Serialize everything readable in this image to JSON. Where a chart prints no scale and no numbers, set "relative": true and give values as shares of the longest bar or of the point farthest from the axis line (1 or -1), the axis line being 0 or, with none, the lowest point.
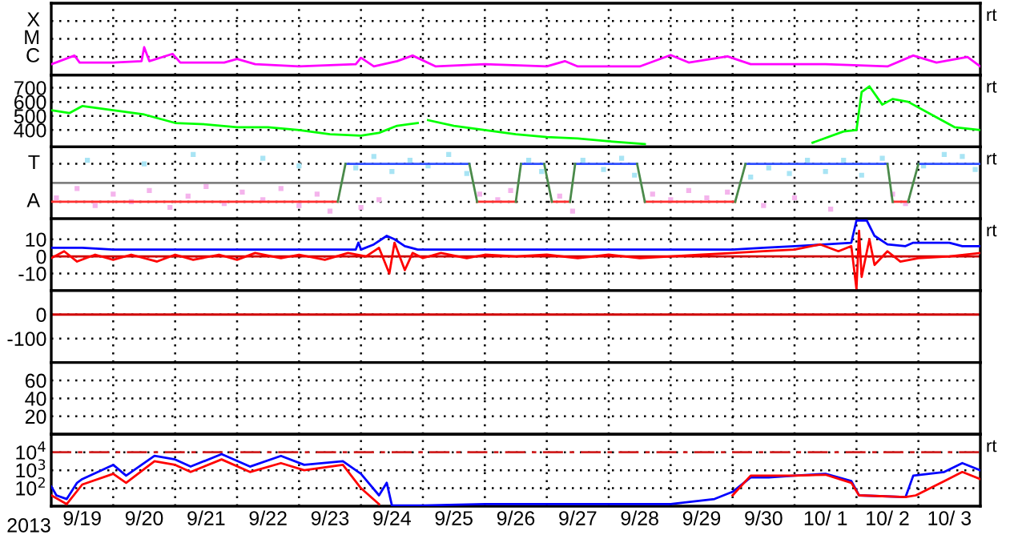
{
  "chart_data": [
    {
      "type": "line",
      "xlim": [
        "2013-09-19T00:00",
        "2013-10-04T00:00"
      ],
      "relative": true,
      "tick_labels": "y",
      "grid": "x",
      "annotations": [
        "rt"
      ],
      "xticks": [
        {
          "value": "2013-09-20T00:00",
          "label": null
        },
        {
          "value": "2013-09-21T00:00",
          "label": null
        },
        {
          "value": "2013-09-22T00:00",
          "label": null
        },
        {
          "value": "2013-09-23T00:00",
          "label": null
        },
        {
          "value": "2013-09-24T00:00",
          "label": null
        },
        {
          "value": "2013-09-25T00:00",
          "label": null
        },
        {
          "value": "2013-09-26T00:00",
          "label": null
        },
        {
          "value": "2013-09-27T00:00",
          "label": null
        },
        {
          "value": "2013-09-28T00:00",
          "label": null
        },
        {
          "value": "2013-09-29T00:00",
          "label": null
        },
        {
          "value": "2013-09-30T00:00",
          "label": null
        },
        {
          "value": "2013-10-01T00:00",
          "label": null
        },
        {
          "value": "2013-10-02T00:00",
          "label": null
        },
        {
          "value": "2013-10-03T00:00",
          "label": null
        }
      ],
      "ref_lines": [
        {
          "axis": "y",
          "value": 0.65,
          "label": "C",
          "color": "#000000",
          "line_style": "dotted"
        },
        {
          "axis": "y",
          "value": 1.3,
          "label": "M",
          "color": "#000000",
          "line_style": "dotted"
        },
        {
          "axis": "y",
          "value": 1.94,
          "label": "X",
          "color": "#000000",
          "line_style": "dotted"
        }
      ],
      "series": [
        {
          "color": "#ff00ff",
          "x": [
            "2013-09-19T00:00",
            "2013-09-19T09:00",
            "2013-09-19T11:00",
            "2013-09-20T00:00",
            "2013-09-20T11:00",
            "2013-09-20T12:00",
            "2013-09-20T14:00",
            "2013-09-20T23:00",
            "2013-09-21T02:00",
            "2013-09-21T19:00",
            "2013-09-22T00:00",
            "2013-09-22T07:00",
            "2013-09-23T00:00",
            "2013-09-23T22:00",
            "2013-09-24T00:00",
            "2013-09-24T05:00",
            "2013-09-24T14:00",
            "2013-09-24T20:00",
            "2013-09-25T05:00",
            "2013-09-26T00:00",
            "2013-09-27T00:00",
            "2013-09-27T07:00",
            "2013-09-27T12:00",
            "2013-09-28T12:00",
            "2013-09-29T00:00",
            "2013-09-29T07:00",
            "2013-09-29T22:00",
            "2013-09-30T07:00",
            "2013-10-01T12:00",
            "2013-10-02T12:00",
            "2013-10-02T22:00",
            "2013-10-03T07:00",
            "2013-10-03T19:00",
            "2013-10-04T00:00"
          ],
          "values": [
            0.39,
            0.7,
            0.45,
            0.45,
            0.5,
            1,
            0.5,
            0.76,
            0.45,
            0.45,
            0.58,
            0.39,
            0.31,
            0.39,
            0.62,
            0.31,
            0.5,
            0.7,
            0.31,
            0.39,
            0.31,
            0.5,
            0.31,
            0.31,
            0.72,
            0.45,
            0.67,
            0.39,
            0.39,
            0.31,
            0.7,
            0.45,
            0.65,
            0.31
          ]
        }
      ]
    },
    {
      "type": "line",
      "xlim": [
        "2013-09-19T00:00",
        "2013-10-04T00:00"
      ],
      "ylim": [
        280,
        790
      ],
      "tick_labels": "y",
      "grid": true,
      "annotations": [
        "rt"
      ],
      "xticks": [
        {
          "value": "2013-09-20T00:00",
          "label": null
        },
        {
          "value": "2013-09-21T00:00",
          "label": null
        },
        {
          "value": "2013-09-22T00:00",
          "label": null
        },
        {
          "value": "2013-09-23T00:00",
          "label": null
        },
        {
          "value": "2013-09-24T00:00",
          "label": null
        },
        {
          "value": "2013-09-25T00:00",
          "label": null
        },
        {
          "value": "2013-09-26T00:00",
          "label": null
        },
        {
          "value": "2013-09-27T00:00",
          "label": null
        },
        {
          "value": "2013-09-28T00:00",
          "label": null
        },
        {
          "value": "2013-09-29T00:00",
          "label": null
        },
        {
          "value": "2013-09-30T00:00",
          "label": null
        },
        {
          "value": "2013-10-01T00:00",
          "label": null
        },
        {
          "value": "2013-10-02T00:00",
          "label": null
        },
        {
          "value": "2013-10-03T00:00",
          "label": null
        }
      ],
      "yticks": [
        400,
        500,
        600,
        700
      ],
      "series": [
        {
          "color": "#00ff00",
          "x": [
            "2013-09-19T00:00",
            "2013-09-19T07:00",
            "2013-09-19T12:00",
            "2013-09-20T00:00",
            "2013-09-20T12:00",
            "2013-09-21T00:00",
            "2013-09-21T12:00",
            "2013-09-22T00:00",
            "2013-09-22T12:00",
            "2013-09-23T00:00",
            "2013-09-23T12:00",
            "2013-09-24T00:00",
            "2013-09-24T07:00",
            "2013-09-24T14:00",
            "2013-09-24T22:00",
            "2013-09-24T23:00",
            "2013-09-25T02:00",
            "2013-09-25T12:00",
            "2013-09-26T00:00",
            "2013-09-26T12:00",
            "2013-09-27T00:00",
            "2013-09-27T12:00",
            "2013-09-28T00:00",
            "2013-09-28T14:00",
            "2013-09-28T17:00",
            "2013-10-01T07:00",
            "2013-10-01T19:00",
            "2013-10-02T00:00",
            "2013-10-02T02:00",
            "2013-10-02T05:00",
            "2013-10-02T10:00",
            "2013-10-02T14:00",
            "2013-10-02T20:00",
            "2013-10-03T07:00",
            "2013-10-03T14:00",
            "2013-10-04T00:00"
          ],
          "values": [
            540,
            520,
            570,
            540,
            510,
            450,
            440,
            420,
            420,
            400,
            370,
            360,
            380,
            430,
            450,
            null,
            470,
            430,
            400,
            370,
            350,
            340,
            320,
            300,
            null,
            310,
            390,
            400,
            670,
            710,
            580,
            620,
            600,
            490,
            420,
            400
          ]
        }
      ]
    },
    {
      "type": "line",
      "xlim": [
        "2013-09-19T00:00",
        "2013-10-04T00:00"
      ],
      "relative": true,
      "tick_labels": "y",
      "grid": "x",
      "annotations": [
        "rt"
      ],
      "xticks": [
        {
          "value": "2013-09-20T00:00",
          "label": null
        },
        {
          "value": "2013-09-21T00:00",
          "label": null
        },
        {
          "value": "2013-09-22T00:00",
          "label": null
        },
        {
          "value": "2013-09-23T00:00",
          "label": null
        },
        {
          "value": "2013-09-24T00:00",
          "label": null
        },
        {
          "value": "2013-09-25T00:00",
          "label": null
        },
        {
          "value": "2013-09-26T00:00",
          "label": null
        },
        {
          "value": "2013-09-27T00:00",
          "label": null
        },
        {
          "value": "2013-09-28T00:00",
          "label": null
        },
        {
          "value": "2013-09-29T00:00",
          "label": null
        },
        {
          "value": "2013-09-30T00:00",
          "label": null
        },
        {
          "value": "2013-10-01T00:00",
          "label": null
        },
        {
          "value": "2013-10-02T00:00",
          "label": null
        },
        {
          "value": "2013-10-03T00:00",
          "label": null
        }
      ],
      "ref_lines": [
        {
          "axis": "y",
          "value": 0,
          "label": null,
          "color": "#808080",
          "line_style": "solid"
        },
        {
          "axis": "y",
          "value": 0.67,
          "label": "T",
          "color": "#000000",
          "line_style": "dotted"
        },
        {
          "axis": "y",
          "value": -0.67,
          "label": "A",
          "color": "#000000",
          "line_style": "dotted"
        }
      ],
      "series": [
        {
          "type": "scatter",
          "marker": "square",
          "color": "#f4b4ec",
          "x": [
            "2013-09-19T02:00",
            "2013-09-19T10:00",
            "2013-09-19T17:00",
            "2013-09-20T00:00",
            "2013-09-20T07:00",
            "2013-09-20T14:00",
            "2013-09-20T22:00",
            "2013-09-21T05:00",
            "2013-09-21T12:00",
            "2013-09-21T19:00",
            "2013-09-22T02:00",
            "2013-09-22T10:00",
            "2013-09-22T17:00",
            "2013-09-23T00:00",
            "2013-09-23T07:00",
            "2013-09-23T12:00",
            "2013-09-24T00:00",
            "2013-09-24T07:00",
            "2013-09-25T22:00",
            "2013-09-26T05:00",
            "2013-09-26T10:00",
            "2013-09-27T05:00",
            "2013-09-27T10:00",
            "2013-09-28T17:00",
            "2013-09-29T00:00",
            "2013-09-29T07:00",
            "2013-09-29T14:00",
            "2013-09-29T22:00",
            "2013-09-30T12:00",
            "2013-10-01T00:00",
            "2013-10-01T14:00",
            "2013-10-02T14:00",
            "2013-10-02T19:00"
          ],
          "values": [
            -0.53,
            -0.2,
            -0.8,
            -0.4,
            -0.67,
            -0.27,
            -0.87,
            -0.47,
            -0.13,
            -0.73,
            -0.33,
            -0.6,
            -0.2,
            -0.8,
            -0.4,
            -1,
            -0.87,
            -0.6,
            -0.4,
            -0.6,
            -0.27,
            -0.47,
            -1,
            -0.4,
            -0.6,
            -0.27,
            -0.53,
            -0.33,
            -0.8,
            -0.53,
            -0.93,
            -0.4,
            -0.73
          ]
        },
        {
          "type": "scatter",
          "marker": "square",
          "color": "#a8e4f4",
          "x": [
            "2013-09-19T14:00",
            "2013-09-20T12:00",
            "2013-09-21T07:00",
            "2013-09-22T10:00",
            "2013-09-23T00:00",
            "2013-09-23T22:00",
            "2013-09-24T05:00",
            "2013-09-24T12:00",
            "2013-09-24T19:00",
            "2013-09-25T02:00",
            "2013-09-25T10:00",
            "2013-09-25T17:00",
            "2013-09-26T17:00",
            "2013-09-26T22:00",
            "2013-09-27T14:00",
            "2013-09-27T22:00",
            "2013-09-28T05:00",
            "2013-09-28T10:00",
            "2013-09-30T07:00",
            "2013-09-30T14:00",
            "2013-09-30T22:00",
            "2013-10-01T05:00",
            "2013-10-01T12:00",
            "2013-10-01T19:00",
            "2013-10-02T02:00",
            "2013-10-02T10:00",
            "2013-10-03T02:00",
            "2013-10-03T10:00",
            "2013-10-03T17:00",
            "2013-10-03T22:00"
          ],
          "values": [
            0.8,
            0.67,
            1,
            0.87,
            0.6,
            0.53,
            0.93,
            0.4,
            0.8,
            0.6,
            1,
            0.33,
            0.8,
            0.4,
            0.8,
            0.47,
            0.87,
            0.27,
            0.2,
            0.53,
            0.33,
            0.8,
            0.4,
            0.8,
            0.27,
            0.87,
            0.6,
            1,
            0.93,
            0.47
          ]
        },
        {
          "color": "#ff3030",
          "x": [
            "2013-09-19T00:00",
            "2013-09-23T15:00",
            "2013-09-24T00:00",
            "2013-09-25T21:00",
            "2013-09-26T12:00",
            "2013-09-26T13:00",
            "2013-09-27T02:00",
            "2013-09-27T09:00",
            "2013-09-27T10:00",
            "2013-09-28T14:00",
            "2013-09-30T01:00",
            "2013-09-30T02:00",
            "2013-10-02T14:00",
            "2013-10-02T20:00"
          ],
          "values": [
            -0.67,
            -0.67,
            null,
            -0.67,
            -0.67,
            null,
            -0.67,
            -0.67,
            null,
            -0.67,
            -0.67,
            null,
            -0.67,
            -0.67
          ]
        },
        {
          "color": "#3050ff",
          "x": [
            "2013-09-23T18:00",
            "2013-09-25T18:00",
            "2013-09-25T19:00",
            "2013-09-26T14:00",
            "2013-09-26T23:00",
            "2013-09-27T00:00",
            "2013-09-27T11:00",
            "2013-09-28T11:00",
            "2013-09-28T12:00",
            "2013-09-30T05:00",
            "2013-10-02T12:00",
            "2013-10-02T13:00",
            "2013-10-03T00:00",
            "2013-10-04T00:00"
          ],
          "values": [
            0.67,
            0.67,
            null,
            0.67,
            0.67,
            null,
            0.67,
            0.67,
            null,
            0.67,
            0.67,
            null,
            0.67,
            0.67
          ]
        },
        {
          "color": "#4a8a4a",
          "x": [
            "2013-09-23T15:00",
            "2013-09-23T18:00",
            "2013-09-24T00:00",
            "2013-09-25T18:00",
            "2013-09-25T21:00",
            "2013-09-26T00:00",
            "2013-09-26T12:00",
            "2013-09-26T14:00",
            "2013-09-26T15:00",
            "2013-09-26T23:00",
            "2013-09-27T02:00",
            "2013-09-27T03:00",
            "2013-09-27T09:00",
            "2013-09-27T11:00",
            "2013-09-27T12:00",
            "2013-09-28T11:00",
            "2013-09-28T14:00",
            "2013-09-28T15:00",
            "2013-09-30T01:00",
            "2013-09-30T05:00",
            "2013-09-30T06:00",
            "2013-10-02T12:00",
            "2013-10-02T14:00",
            "2013-10-02T15:00",
            "2013-10-02T20:00",
            "2013-10-03T00:00"
          ],
          "values": [
            -0.67,
            0.67,
            null,
            0.67,
            -0.67,
            null,
            -0.67,
            0.67,
            null,
            0.67,
            -0.67,
            null,
            -0.67,
            0.67,
            null,
            0.67,
            -0.67,
            null,
            -0.67,
            0.67,
            null,
            0.67,
            -0.67,
            null,
            -0.67,
            0.67
          ]
        }
      ]
    },
    {
      "type": "line",
      "xlim": [
        "2013-09-19T00:00",
        "2013-10-04T00:00"
      ],
      "ylim": [
        -20,
        22
      ],
      "tick_labels": "y",
      "grid": true,
      "annotations": [
        "rt"
      ],
      "xticks": [
        {
          "value": "2013-09-20T00:00",
          "label": null
        },
        {
          "value": "2013-09-21T00:00",
          "label": null
        },
        {
          "value": "2013-09-22T00:00",
          "label": null
        },
        {
          "value": "2013-09-23T00:00",
          "label": null
        },
        {
          "value": "2013-09-24T00:00",
          "label": null
        },
        {
          "value": "2013-09-25T00:00",
          "label": null
        },
        {
          "value": "2013-09-26T00:00",
          "label": null
        },
        {
          "value": "2013-09-27T00:00",
          "label": null
        },
        {
          "value": "2013-09-28T00:00",
          "label": null
        },
        {
          "value": "2013-09-29T00:00",
          "label": null
        },
        {
          "value": "2013-09-30T00:00",
          "label": null
        },
        {
          "value": "2013-10-01T00:00",
          "label": null
        },
        {
          "value": "2013-10-02T00:00",
          "label": null
        },
        {
          "value": "2013-10-03T00:00",
          "label": null
        }
      ],
      "yticks": [
        -10,
        0,
        10
      ],
      "ref_lines": [
        {
          "axis": "y",
          "value": 0,
          "label": null,
          "color": "#d00000",
          "line_style": "solid"
        }
      ],
      "series": [
        {
          "color": "#0000ff",
          "x": [
            "2013-09-19T00:00",
            "2013-09-19T12:00",
            "2013-09-20T00:00",
            "2013-09-21T00:00",
            "2013-09-22T00:00",
            "2013-09-23T00:00",
            "2013-09-23T22:00",
            "2013-09-23T23:00",
            "2013-09-24T00:00",
            "2013-09-24T05:00",
            "2013-09-24T10:00",
            "2013-09-24T13:00",
            "2013-09-24T17:00",
            "2013-09-24T22:00",
            "2013-09-25T05:00",
            "2013-09-26T00:00",
            "2013-09-27T00:00",
            "2013-09-28T00:00",
            "2013-09-29T00:00",
            "2013-09-30T00:00",
            "2013-09-30T12:00",
            "2013-10-01T00:00",
            "2013-10-01T12:00",
            "2013-10-01T22:00",
            "2013-10-02T00:00",
            "2013-10-02T04:00",
            "2013-10-02T07:00",
            "2013-10-02T12:00",
            "2013-10-02T19:00",
            "2013-10-02T22:00",
            "2013-10-03T12:00",
            "2013-10-03T17:00",
            "2013-10-04T00:00"
          ],
          "values": [
            5,
            5,
            4,
            4,
            4,
            4,
            4,
            8,
            4,
            7,
            12,
            10,
            6,
            4,
            4,
            4,
            4,
            4,
            4,
            4,
            5,
            6,
            7,
            8,
            21,
            21,
            12,
            7,
            6,
            8,
            8,
            6,
            6
          ]
        },
        {
          "color": "#ff0000",
          "x": [
            "2013-09-19T00:00",
            "2013-09-19T05:00",
            "2013-09-19T10:00",
            "2013-09-19T17:00",
            "2013-09-20T00:00",
            "2013-09-20T07:00",
            "2013-09-20T17:00",
            "2013-09-21T00:00",
            "2013-09-21T07:00",
            "2013-09-21T17:00",
            "2013-09-22T00:00",
            "2013-09-22T07:00",
            "2013-09-22T17:00",
            "2013-09-23T00:00",
            "2013-09-23T10:00",
            "2013-09-23T19:00",
            "2013-09-24T02:00",
            "2013-09-24T07:00",
            "2013-09-24T11:00",
            "2013-09-24T13:00",
            "2013-09-24T17:00",
            "2013-09-24T20:00",
            "2013-09-25T00:00",
            "2013-09-25T07:00",
            "2013-09-25T17:00",
            "2013-09-26T00:00",
            "2013-09-26T12:00",
            "2013-09-27T00:00",
            "2013-09-27T12:00",
            "2013-09-28T00:00",
            "2013-09-28T12:00",
            "2013-09-29T00:00",
            "2013-09-29T12:00",
            "2013-09-30T00:00",
            "2013-09-30T12:00",
            "2013-10-01T00:00",
            "2013-10-01T10:00",
            "2013-10-01T17:00",
            "2013-10-01T22:00",
            "2013-10-02T00:00",
            "2013-10-02T01:00",
            "2013-10-02T02:00",
            "2013-10-02T05:00",
            "2013-10-02T07:00",
            "2013-10-02T12:00",
            "2013-10-02T17:00",
            "2013-10-03T00:00",
            "2013-10-03T12:00",
            "2013-10-04T00:00"
          ],
          "values": [
            -1,
            3,
            -3,
            1,
            -2,
            1,
            -3,
            1,
            -2,
            1,
            -2,
            2,
            -1,
            1,
            -2,
            2,
            0,
            5,
            -10,
            8,
            -8,
            2,
            -1,
            2,
            -1,
            1,
            0,
            1,
            -1,
            1,
            -1,
            0,
            1,
            2,
            3,
            4,
            7,
            3,
            6,
            -19,
            15,
            -12,
            10,
            -5,
            3,
            -3,
            -1,
            0,
            2
          ]
        }
      ]
    },
    {
      "type": "line",
      "xlim": [
        "2013-09-19T00:00",
        "2013-10-04T00:00"
      ],
      "ylim": [
        -200,
        100
      ],
      "tick_labels": "y",
      "grid": true,
      "xticks": [
        {
          "value": "2013-09-20T00:00",
          "label": null
        },
        {
          "value": "2013-09-21T00:00",
          "label": null
        },
        {
          "value": "2013-09-22T00:00",
          "label": null
        },
        {
          "value": "2013-09-23T00:00",
          "label": null
        },
        {
          "value": "2013-09-24T00:00",
          "label": null
        },
        {
          "value": "2013-09-25T00:00",
          "label": null
        },
        {
          "value": "2013-09-26T00:00",
          "label": null
        },
        {
          "value": "2013-09-27T00:00",
          "label": null
        },
        {
          "value": "2013-09-28T00:00",
          "label": null
        },
        {
          "value": "2013-09-29T00:00",
          "label": null
        },
        {
          "value": "2013-09-30T00:00",
          "label": null
        },
        {
          "value": "2013-10-01T00:00",
          "label": null
        },
        {
          "value": "2013-10-02T00:00",
          "label": null
        },
        {
          "value": "2013-10-03T00:00",
          "label": null
        }
      ],
      "yticks": [
        -100,
        0
      ],
      "ref_lines": [
        {
          "axis": "y",
          "value": 0,
          "label": null,
          "color": "#d00000",
          "line_style": "solid"
        }
      ]
    },
    {
      "type": "line",
      "xlim": [
        "2013-09-19T00:00",
        "2013-10-04T00:00"
      ],
      "ylim": [
        0,
        80
      ],
      "tick_labels": "y",
      "grid": true,
      "xticks": [
        {
          "value": "2013-09-20T00:00",
          "label": null
        },
        {
          "value": "2013-09-21T00:00",
          "label": null
        },
        {
          "value": "2013-09-22T00:00",
          "label": null
        },
        {
          "value": "2013-09-23T00:00",
          "label": null
        },
        {
          "value": "2013-09-24T00:00",
          "label": null
        },
        {
          "value": "2013-09-25T00:00",
          "label": null
        },
        {
          "value": "2013-09-26T00:00",
          "label": null
        },
        {
          "value": "2013-09-27T00:00",
          "label": null
        },
        {
          "value": "2013-09-28T00:00",
          "label": null
        },
        {
          "value": "2013-09-29T00:00",
          "label": null
        },
        {
          "value": "2013-09-30T00:00",
          "label": null
        },
        {
          "value": "2013-10-01T00:00",
          "label": null
        },
        {
          "value": "2013-10-02T00:00",
          "label": null
        },
        {
          "value": "2013-10-03T00:00",
          "label": null
        }
      ],
      "yticks": [
        20,
        40,
        60
      ]
    },
    {
      "type": "line",
      "xlim": [
        "2013-09-19T00:00",
        "2013-10-04T00:00"
      ],
      "ylim": [
        10,
        100000.0
      ],
      "log": true,
      "grid": true,
      "annotations": [
        "rt"
      ],
      "xlabel": "2013",
      "xticks": [
        {
          "value": "2013-09-19T12:00",
          "label": "9/19"
        },
        {
          "value": "2013-09-20T00:00",
          "label": null
        },
        {
          "value": "2013-09-20T12:00",
          "label": "9/20"
        },
        {
          "value": "2013-09-21T00:00",
          "label": null
        },
        {
          "value": "2013-09-21T12:00",
          "label": "9/21"
        },
        {
          "value": "2013-09-22T00:00",
          "label": null
        },
        {
          "value": "2013-09-22T12:00",
          "label": "9/22"
        },
        {
          "value": "2013-09-23T00:00",
          "label": null
        },
        {
          "value": "2013-09-23T12:00",
          "label": "9/23"
        },
        {
          "value": "2013-09-24T00:00",
          "label": null
        },
        {
          "value": "2013-09-24T12:00",
          "label": "9/24"
        },
        {
          "value": "2013-09-25T00:00",
          "label": null
        },
        {
          "value": "2013-09-25T12:00",
          "label": "9/25"
        },
        {
          "value": "2013-09-26T00:00",
          "label": null
        },
        {
          "value": "2013-09-26T12:00",
          "label": "9/26"
        },
        {
          "value": "2013-09-27T00:00",
          "label": null
        },
        {
          "value": "2013-09-27T12:00",
          "label": "9/27"
        },
        {
          "value": "2013-09-28T00:00",
          "label": null
        },
        {
          "value": "2013-09-28T12:00",
          "label": "9/28"
        },
        {
          "value": "2013-09-29T00:00",
          "label": null
        },
        {
          "value": "2013-09-29T12:00",
          "label": "9/29"
        },
        {
          "value": "2013-09-30T00:00",
          "label": null
        },
        {
          "value": "2013-09-30T12:00",
          "label": "9/30"
        },
        {
          "value": "2013-10-01T00:00",
          "label": null
        },
        {
          "value": "2013-10-01T12:00",
          "label": "10/ 1"
        },
        {
          "value": "2013-10-02T00:00",
          "label": null
        },
        {
          "value": "2013-10-02T12:00",
          "label": "10/ 2"
        },
        {
          "value": "2013-10-03T00:00",
          "label": null
        },
        {
          "value": "2013-10-03T12:00",
          "label": "10/ 3"
        }
      ],
      "yticks": [
        {
          "value": 100,
          "label": "10$^{2}$"
        },
        {
          "value": 1000,
          "label": "10$^{3}$"
        },
        {
          "value": 10000,
          "label": "10$^{4}$"
        }
      ],
      "ref_lines": [
        {
          "axis": "y",
          "value": 10000,
          "label": null,
          "color": "#d02020",
          "line_style": "dashed"
        }
      ],
      "series": [
        {
          "color": "#0000ff",
          "x": [
            "2013-09-19T00:00",
            "2013-09-19T02:00",
            "2013-09-19T06:00",
            "2013-09-19T10:00",
            "2013-09-19T12:00",
            "2013-09-20T00:00",
            "2013-09-20T05:00",
            "2013-09-20T16:00",
            "2013-09-21T00:00",
            "2013-09-21T06:00",
            "2013-09-21T18:00",
            "2013-09-22T05:00",
            "2013-09-22T17:00",
            "2013-09-23T02:00",
            "2013-09-23T17:00",
            "2013-09-24T00:00",
            "2013-09-24T07:00",
            "2013-09-24T10:00",
            "2013-09-24T12:00",
            "2013-09-25T00:00",
            "2013-09-26T00:00",
            "2013-09-27T00:00",
            "2013-09-28T00:00",
            "2013-09-29T00:00",
            "2013-09-29T17:00",
            "2013-09-30T00:00",
            "2013-09-30T07:00",
            "2013-09-30T14:00",
            "2013-10-01T00:00",
            "2013-10-01T12:00",
            "2013-10-01T22:00",
            "2013-10-02T01:00",
            "2013-10-02T19:00",
            "2013-10-02T22:00",
            "2013-10-03T10:00",
            "2013-10-03T17:00",
            "2013-10-04T00:00"
          ],
          "values": [
            126,
            40,
            25,
            200,
            320,
            2000,
            500,
            6300,
            4000,
            1600,
            7900,
            1600,
            6300,
            2000,
            3200,
            630,
            40,
            200,
            11,
            11,
            13,
            13,
            13,
            13,
            25,
            63,
            400,
            400,
            500,
            630,
            250,
            40,
            32,
            500,
            800,
            2500,
            1000
          ]
        },
        {
          "color": "#ff0000",
          "x": [
            "2013-09-19T00:00",
            "2013-09-19T06:00",
            "2013-09-19T12:00",
            "2013-09-20T00:00",
            "2013-09-20T05:00",
            "2013-09-20T16:00",
            "2013-09-21T00:00",
            "2013-09-21T06:00",
            "2013-09-21T18:00",
            "2013-09-22T05:00",
            "2013-09-22T17:00",
            "2013-09-23T02:00",
            "2013-09-23T17:00",
            "2013-09-24T00:00",
            "2013-09-24T07:00",
            "2013-09-24T10:00",
            "2013-09-30T00:00",
            "2013-09-30T07:00",
            "2013-09-30T14:00",
            "2013-10-01T00:00",
            "2013-10-01T12:00",
            "2013-10-01T22:00",
            "2013-10-02T01:00",
            "2013-10-02T19:00",
            "2013-10-02T23:00",
            "2013-10-03T10:00",
            "2013-10-03T17:00",
            "2013-10-04T00:00"
          ],
          "values": [
            40,
            13,
            160,
            630,
            200,
            3200,
            2000,
            800,
            4000,
            800,
            2500,
            1000,
            2000,
            100,
            13,
            null,
            40,
            500,
            500,
            500,
            560,
            200,
            40,
            32,
            40,
            250,
            800,
            320
          ]
        }
      ]
    }
  ]
}
